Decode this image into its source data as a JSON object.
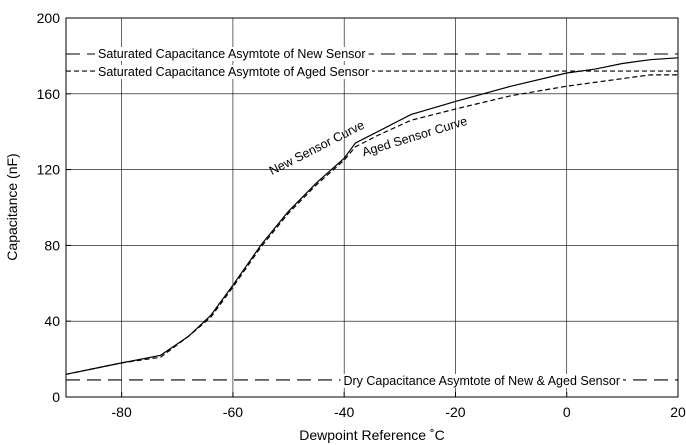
{
  "chart_data": {
    "type": "line",
    "xlabel": "Dewpoint Reference ˚C",
    "ylabel": "Capacitance (nF)",
    "xlim": [
      -90,
      20
    ],
    "ylim": [
      0,
      200
    ],
    "x_ticks": [
      -80,
      -60,
      -40,
      -20,
      0,
      20
    ],
    "y_ticks": [
      0,
      40,
      80,
      120,
      160,
      200
    ],
    "grid": true,
    "series": [
      {
        "name": "New Sensor Curve",
        "style": "solid",
        "points": [
          [
            -90,
            12
          ],
          [
            -85,
            15
          ],
          [
            -80,
            18
          ],
          [
            -73,
            22
          ],
          [
            -68,
            32
          ],
          [
            -64,
            43
          ],
          [
            -60,
            59
          ],
          [
            -55,
            80
          ],
          [
            -50,
            98
          ],
          [
            -45,
            113
          ],
          [
            -40,
            126
          ],
          [
            -38,
            134
          ],
          [
            -34,
            140
          ],
          [
            -28,
            149
          ],
          [
            -20,
            156
          ],
          [
            -10,
            164
          ],
          [
            0,
            171
          ],
          [
            5,
            173
          ],
          [
            10,
            176
          ],
          [
            15,
            178
          ],
          [
            20,
            179
          ]
        ]
      },
      {
        "name": "Aged Sensor Curve",
        "style": "dashed",
        "points": [
          [
            -90,
            12
          ],
          [
            -85,
            15
          ],
          [
            -80,
            18
          ],
          [
            -73,
            21
          ],
          [
            -68,
            32
          ],
          [
            -64,
            42
          ],
          [
            -60,
            58
          ],
          [
            -55,
            79
          ],
          [
            -50,
            97
          ],
          [
            -45,
            112
          ],
          [
            -40,
            125
          ],
          [
            -38,
            132
          ],
          [
            -34,
            138
          ],
          [
            -28,
            146
          ],
          [
            -20,
            152
          ],
          [
            -10,
            159
          ],
          [
            0,
            164
          ],
          [
            5,
            166
          ],
          [
            10,
            168
          ],
          [
            15,
            170
          ],
          [
            20,
            170
          ]
        ]
      }
    ],
    "reference_lines": [
      {
        "y": 181,
        "style": "long-dash",
        "label": "Saturated Capacitance Asymtote of New Sensor"
      },
      {
        "y": 172,
        "style": "short-dash",
        "label": "Saturated Capacitance Asymtote of Aged Sensor"
      },
      {
        "y": 9,
        "style": "long-dash",
        "label": "Dry Capacitance Asymtote of New & Aged Sensor"
      }
    ]
  }
}
